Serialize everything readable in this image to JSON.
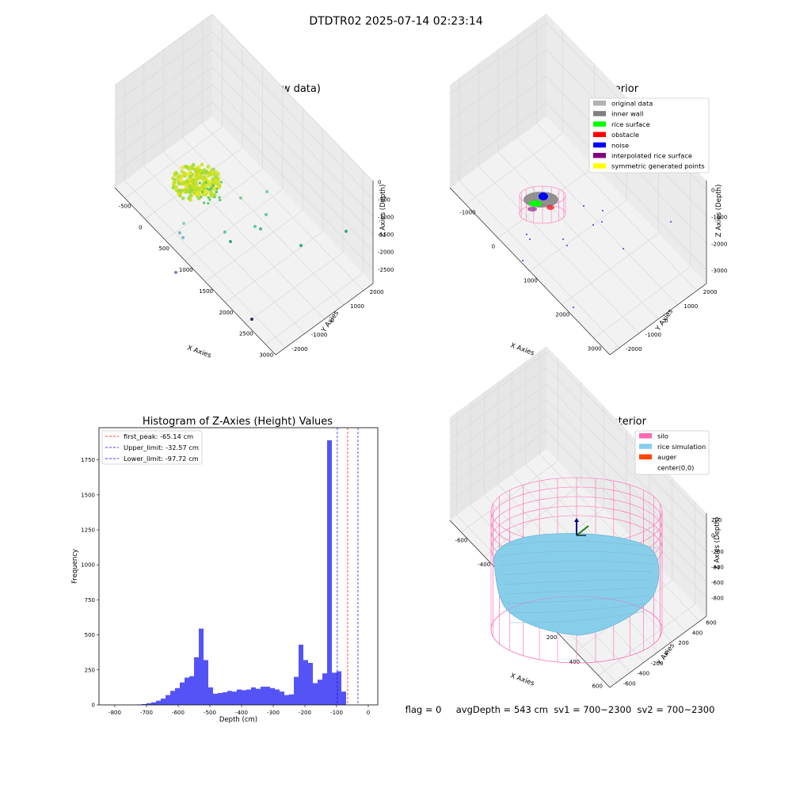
{
  "suptitle": "DTDTR02 2025-07-14 02:23:14",
  "status_line": "flag = 0     avgDepth = 543 cm  sv1 = 700~2300  sv2 = 700~2300",
  "colors": {
    "original_data": "#b2b2b2",
    "inner_wall": "#808080",
    "rice_surface": "#00ff00",
    "obstacle": "#ff0000",
    "noise": "#0000ff",
    "interpolated_rice_surface": "#800080",
    "symmetric_generated_points": "#ffff00",
    "silo": "#ff69b4",
    "rice_simulation": "#87ceeb",
    "auger": "#ff4500",
    "hist_bar": "#4b4bf5",
    "first_peak_line": "#ff0000",
    "limit_line": "#0000ff"
  },
  "chart_data": [
    {
      "type": "scatter",
      "title": "3D Plot of Silo Interior(row data)",
      "xlabel": "X Axies",
      "ylabel": "Y Axies",
      "zlabel": "Z Axies (Depth)",
      "x_ticks": [
        "-500",
        "0",
        "500",
        "1000",
        "1500",
        "2000",
        "2500",
        "3000"
      ],
      "y_ticks": [
        "-2000",
        "-1000",
        "0",
        "1000",
        "2000"
      ],
      "z_ticks": [
        "0",
        "-500",
        "-1000",
        "-1500",
        "-2000",
        "-2500"
      ],
      "note_points": "dense yellow-green cluster near x -400..300, depth -200..-900; sparse outliers",
      "outlier_points": [
        {
          "x": 350,
          "y": -1300,
          "z": -1200
        },
        {
          "x": 750,
          "y": -900,
          "z": -1500
        },
        {
          "x": 1300,
          "y": 300,
          "z": -1000
        },
        {
          "x": 1700,
          "y": 900,
          "z": -1300
        },
        {
          "x": 2600,
          "y": 1400,
          "z": -1700
        },
        {
          "x": 1800,
          "y": -1500,
          "z": -2500
        },
        {
          "x": 200,
          "y": -1600,
          "z": -2200
        }
      ]
    },
    {
      "type": "scatter",
      "title": "3D classify of Silo Interior",
      "xlabel": "X Axies",
      "ylabel": "Y Axies",
      "zlabel": "Z Axies (Depth)",
      "x_ticks": [
        "-1000",
        "0",
        "1000",
        "2000",
        "3000"
      ],
      "y_ticks": [
        "-2000",
        "-1000",
        "0",
        "1000",
        "2000"
      ],
      "z_ticks": [
        "0",
        "-1000",
        "-2000",
        "-3000"
      ],
      "legend": [
        {
          "label": "original data",
          "color_key": "original_data"
        },
        {
          "label": "inner wall",
          "color_key": "inner_wall"
        },
        {
          "label": "rice surface",
          "color_key": "rice_surface"
        },
        {
          "label": "obstacle",
          "color_key": "obstacle"
        },
        {
          "label": "noise",
          "color_key": "noise"
        },
        {
          "label": "interpolated rice surface",
          "color_key": "interpolated_rice_surface"
        },
        {
          "label": "symmetric generated points",
          "color_key": "symmetric_generated_points"
        }
      ]
    },
    {
      "type": "bar",
      "title": "Histogram of Z-Axies (Height) Values",
      "xlabel": "Depth (cm)",
      "ylabel": "Frequency",
      "xlim": [
        -850,
        30
      ],
      "ylim": [
        0,
        1980
      ],
      "x_ticks": [
        -800,
        -700,
        -600,
        -500,
        -400,
        -300,
        -200,
        -100,
        0
      ],
      "y_ticks": [
        0,
        250,
        500,
        750,
        1000,
        1250,
        1500,
        1750
      ],
      "bin_start": -730,
      "bin_width": 15,
      "values": [
        3,
        6,
        12,
        18,
        30,
        45,
        70,
        100,
        120,
        160,
        195,
        205,
        340,
        545,
        320,
        125,
        80,
        85,
        90,
        100,
        95,
        110,
        105,
        110,
        125,
        115,
        130,
        130,
        120,
        110,
        95,
        70,
        75,
        200,
        430,
        320,
        300,
        155,
        180,
        225,
        1890,
        230,
        240,
        95
      ],
      "vlines": [
        {
          "label": "first_peak: -65.14 cm",
          "x": -65.14,
          "color_key": "first_peak_line"
        },
        {
          "label": "Upper_limit: -32.57 cm",
          "x": -32.57,
          "color_key": "limit_line"
        },
        {
          "label": "Lower_limit: -97.72 cm",
          "x": -97.72,
          "color_key": "limit_line"
        }
      ]
    },
    {
      "type": "surface",
      "title": "3D simulation of Silo Interior",
      "xlabel": "X Axies",
      "ylabel": "Y Axies",
      "zlabel": "Z Axies (Depth)",
      "x_ticks": [
        "-600",
        "-400",
        "-200",
        "0",
        "200",
        "400",
        "600"
      ],
      "y_ticks": [
        "-600",
        "-400",
        "-200",
        "0",
        "200",
        "400",
        "600"
      ],
      "z_ticks": [
        "200",
        "0",
        "-200",
        "-400",
        "-600",
        "-800"
      ],
      "legend": [
        {
          "label": "silo",
          "color_key": "silo"
        },
        {
          "label": "rice simulation",
          "color_key": "rice_simulation"
        },
        {
          "label": "auger",
          "color_key": "auger"
        },
        {
          "label": "center(0,0)",
          "color_key": ""
        }
      ]
    }
  ]
}
